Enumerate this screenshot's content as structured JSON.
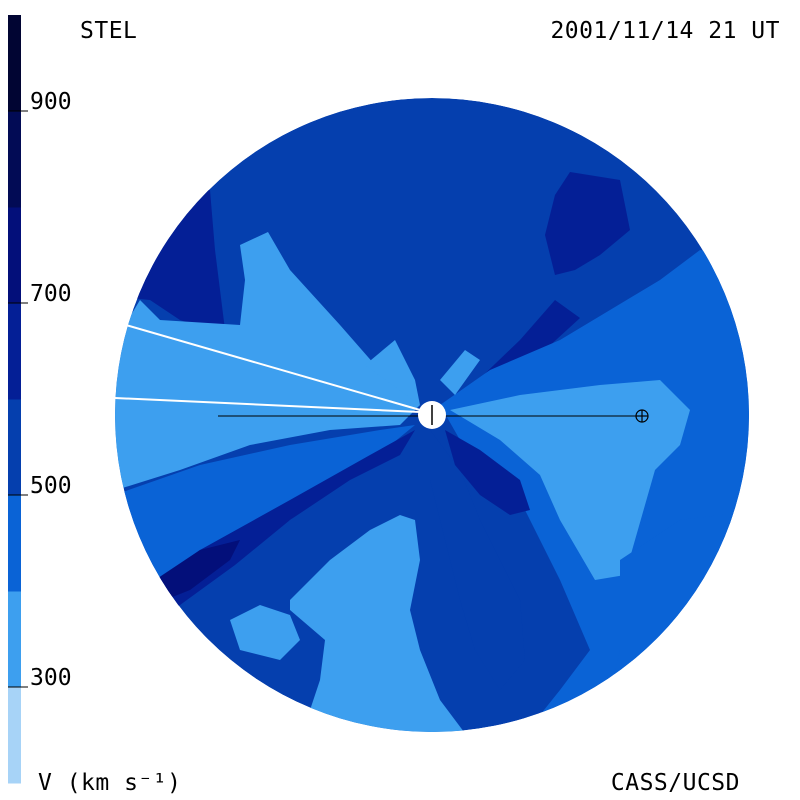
{
  "header": {
    "observatory": "STEL",
    "datetime": "2001/11/14 21 UT"
  },
  "footer": {
    "ylabel": "V (km s⁻¹)",
    "credit": "CASS/UCSD"
  },
  "chart_data": {
    "type": "heatmap",
    "title": "",
    "colorbar": {
      "label": "V (km s⁻¹)",
      "range": [
        200,
        1000
      ],
      "ticks": [
        300,
        500,
        700,
        900
      ],
      "levels": [
        {
          "from": 200,
          "to": 300,
          "color": "#a7d3f7"
        },
        {
          "from": 300,
          "to": 400,
          "color": "#3d9fef"
        },
        {
          "from": 400,
          "to": 500,
          "color": "#0a63d6"
        },
        {
          "from": 500,
          "to": 600,
          "color": "#053fae"
        },
        {
          "from": 600,
          "to": 700,
          "color": "#041f96"
        },
        {
          "from": 700,
          "to": 800,
          "color": "#030f7a"
        },
        {
          "from": 800,
          "to": 900,
          "color": "#020b55"
        },
        {
          "from": 900,
          "to": 1000,
          "color": "#010533"
        }
      ]
    },
    "markers": [
      {
        "name": "sun",
        "symbol": "circle"
      },
      {
        "name": "earth",
        "symbol": "circle-plus"
      }
    ]
  }
}
